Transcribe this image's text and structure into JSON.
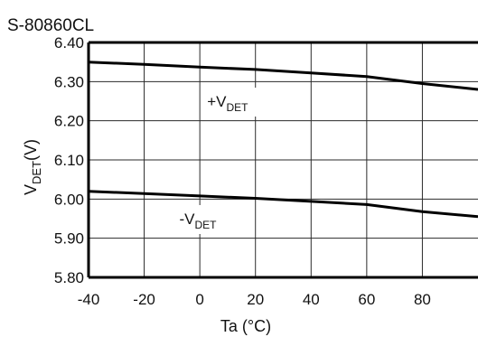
{
  "chart_data": {
    "type": "line",
    "title": "S-80860CL",
    "xlabel": "Ta (°C)",
    "ylabel": {
      "main": "V",
      "sub": "DET",
      "tail": "(V)"
    },
    "xlim": [
      -40,
      100
    ],
    "ylim": [
      5.8,
      6.4
    ],
    "x_ticks": [
      "-40",
      "-20",
      "0",
      "20",
      "40",
      "60",
      "80"
    ],
    "y_ticks": [
      "5.80",
      "5.90",
      "6.00",
      "6.10",
      "6.20",
      "6.30",
      "6.40"
    ],
    "grid": true,
    "series": [
      {
        "name": {
          "main": "+V",
          "sub": "DET"
        },
        "x": [
          -40,
          -20,
          0,
          20,
          40,
          60,
          80,
          100
        ],
        "y": [
          6.35,
          6.344,
          6.337,
          6.331,
          6.322,
          6.313,
          6.295,
          6.28
        ]
      },
      {
        "name": {
          "main": "-V",
          "sub": "DET"
        },
        "x": [
          -40,
          -20,
          0,
          20,
          40,
          60,
          80,
          100
        ],
        "y": [
          6.02,
          6.014,
          6.008,
          6.002,
          5.994,
          5.986,
          5.968,
          5.955
        ]
      }
    ]
  }
}
